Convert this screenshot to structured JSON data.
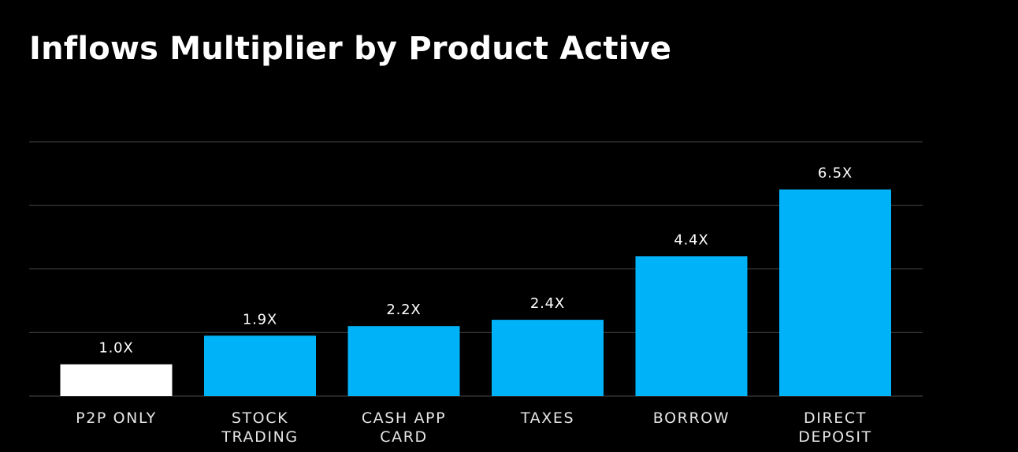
{
  "colors": {
    "background": "#000000",
    "baseline_bar": "#ffffff",
    "bar": "#00b2f7",
    "grid": "#4a4a4a",
    "text": "#ffffff"
  },
  "chart_data": {
    "type": "bar",
    "title": "Inflows Multiplier by Product Active",
    "xlabel": "",
    "ylabel": "",
    "ylim": [
      0,
      8
    ],
    "grid": true,
    "categories": [
      "P2P ONLY",
      "STOCK TRADING",
      "CASH APP CARD",
      "TAXES",
      "BORROW",
      "DIRECT DEPOSIT"
    ],
    "category_lines": [
      [
        "P2P ONLY"
      ],
      [
        "STOCK",
        "TRADING"
      ],
      [
        "CASH APP",
        "CARD"
      ],
      [
        "TAXES"
      ],
      [
        "BORROW"
      ],
      [
        "DIRECT",
        "DEPOSIT"
      ]
    ],
    "values": [
      1.0,
      1.9,
      2.2,
      2.4,
      4.4,
      6.5
    ],
    "data_labels": [
      "1.0X",
      "1.9X",
      "2.2X",
      "2.4X",
      "4.4X",
      "6.5X"
    ]
  }
}
